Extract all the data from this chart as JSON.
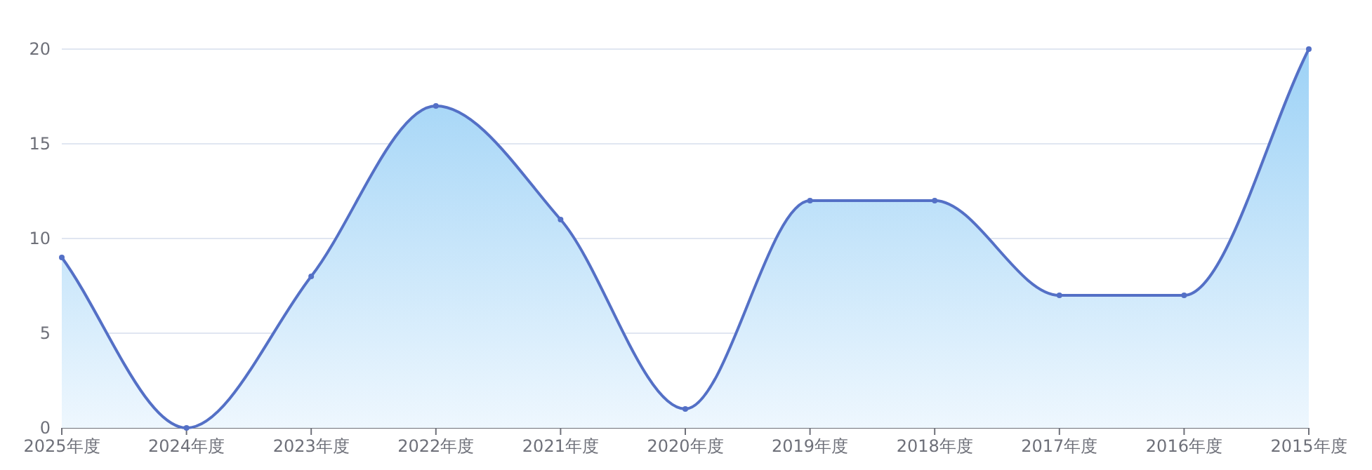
{
  "chart_data": {
    "type": "area",
    "categories": [
      "2025年度",
      "2024年度",
      "2023年度",
      "2022年度",
      "2021年度",
      "2020年度",
      "2019年度",
      "2018年度",
      "2017年度",
      "2016年度",
      "2015年度"
    ],
    "series": [
      {
        "color": "#5470c6",
        "values": [
          9,
          0,
          8,
          17,
          11,
          1,
          12,
          12,
          7,
          7,
          20
        ]
      }
    ],
    "ylim": [
      0,
      20
    ],
    "yticks": [
      0,
      5,
      10,
      15,
      20
    ],
    "grid": "y",
    "marker": "circle",
    "line_style": "solid"
  }
}
